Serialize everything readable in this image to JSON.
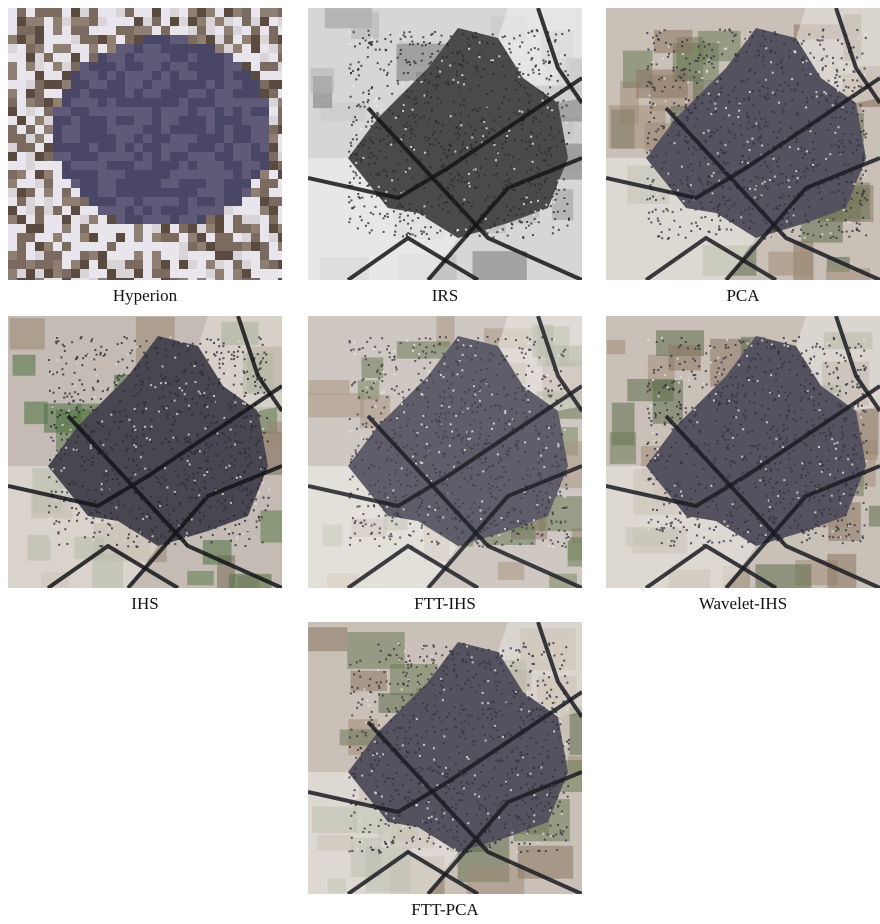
{
  "figure": {
    "panels": [
      {
        "id": "hyperion",
        "caption": "Hyperion",
        "style": "coarse"
      },
      {
        "id": "irs",
        "caption": "IRS",
        "style": "gray"
      },
      {
        "id": "pca",
        "caption": "PCA",
        "style": "color"
      },
      {
        "id": "ihs",
        "caption": "IHS",
        "style": "color-dark"
      },
      {
        "id": "ftt-ihs",
        "caption": "FTT-IHS",
        "style": "color-light"
      },
      {
        "id": "wavelet-ihs",
        "caption": "Wavelet-IHS",
        "style": "color"
      },
      {
        "id": "ftt-pca",
        "caption": "FTT-PCA",
        "style": "color"
      }
    ]
  }
}
